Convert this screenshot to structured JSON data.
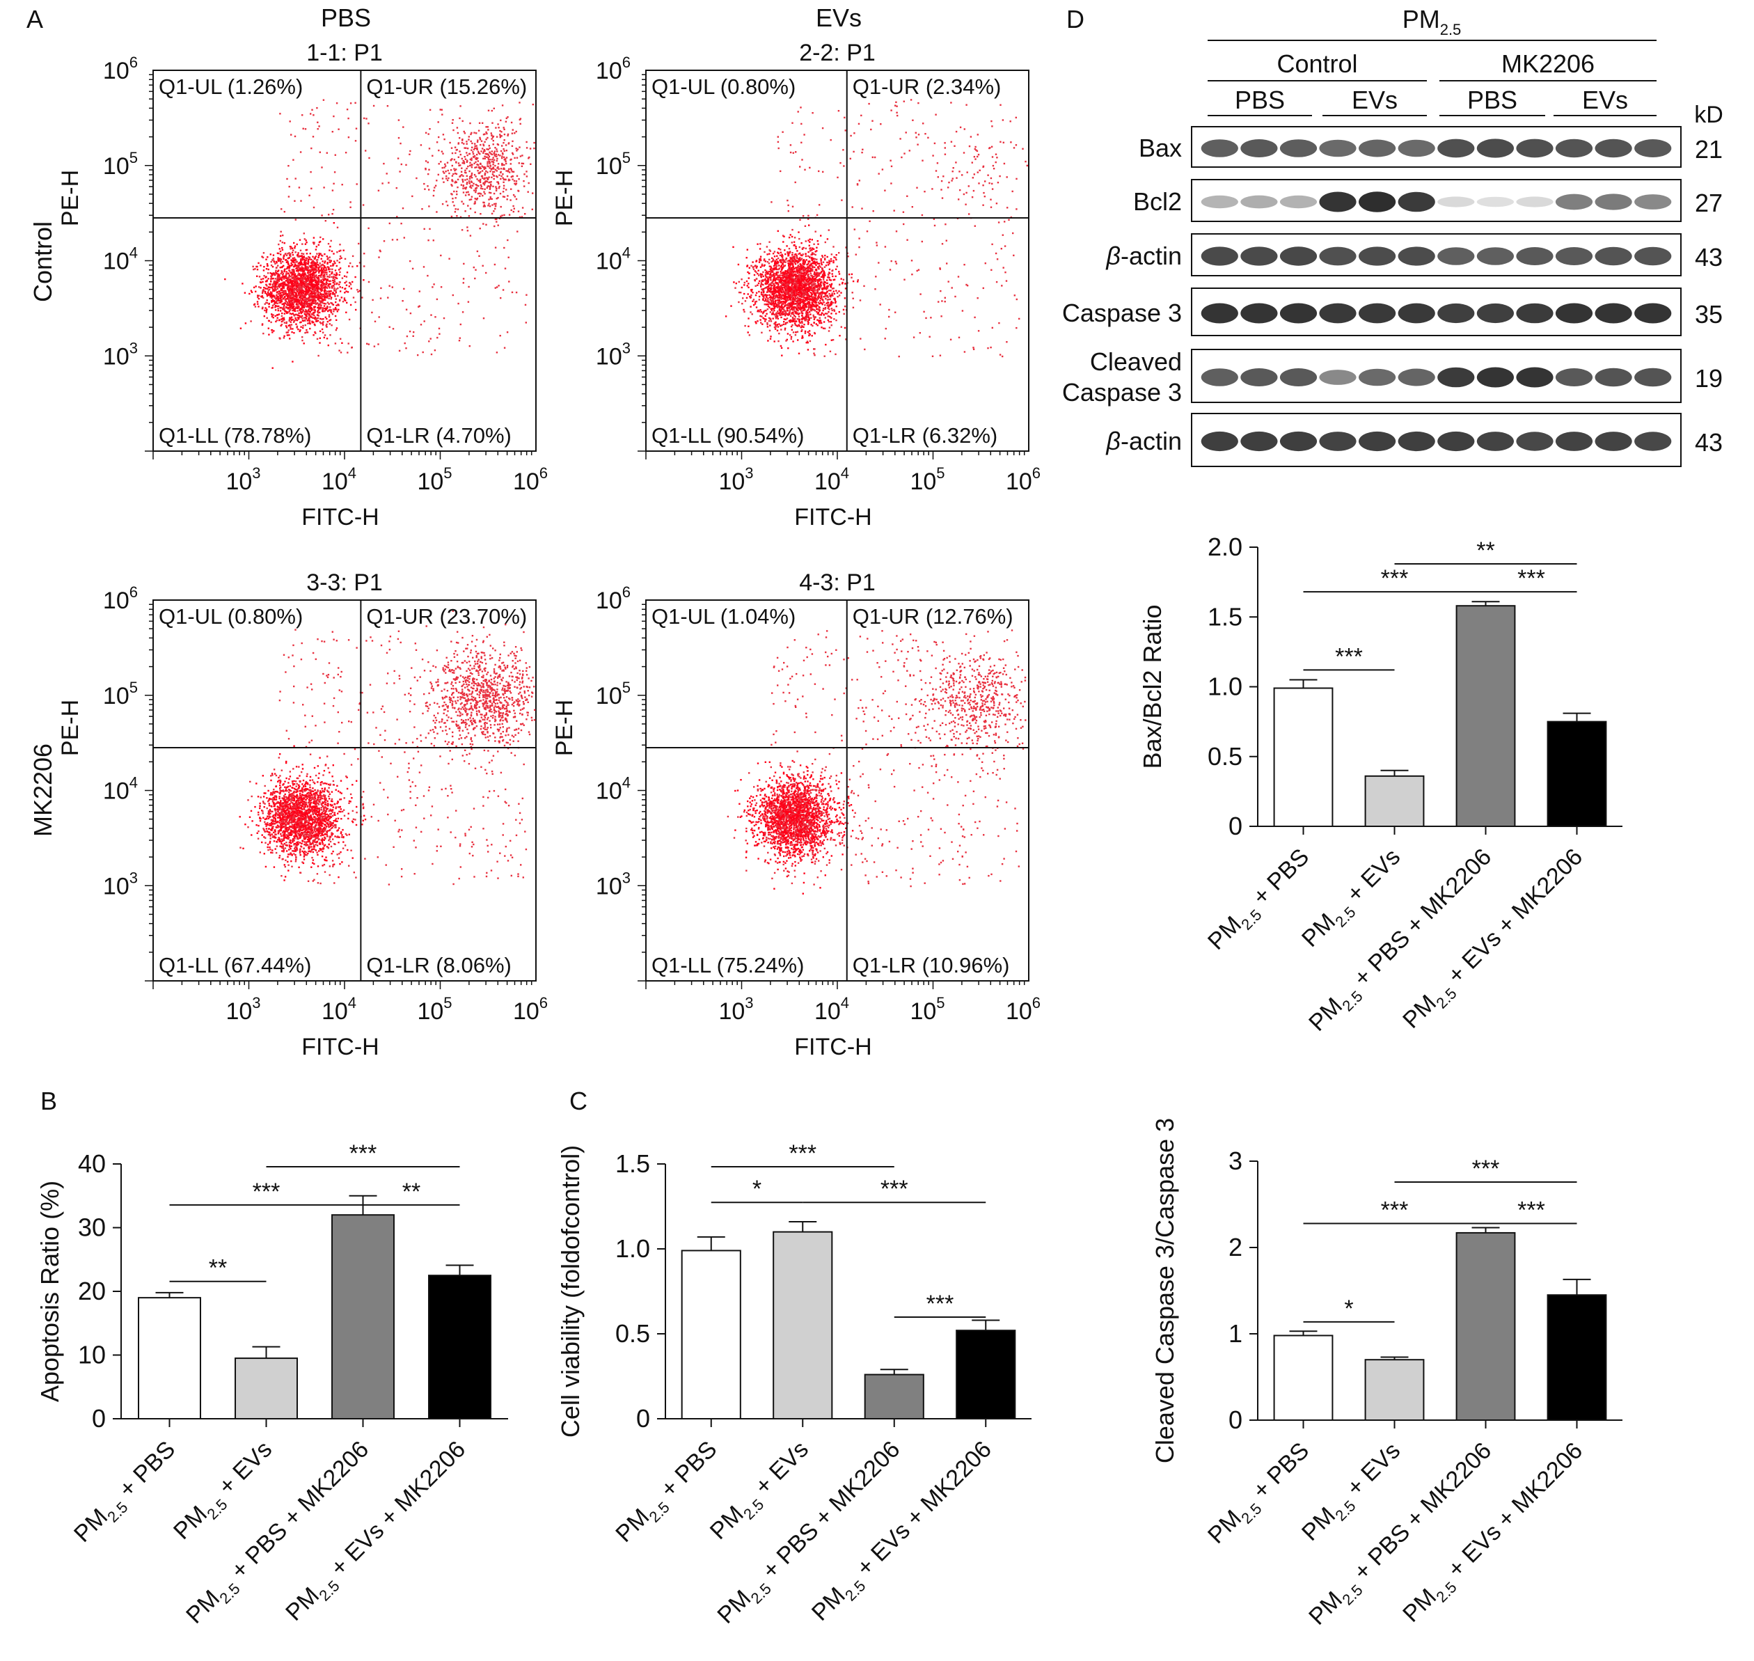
{
  "panel_letters": {
    "a": "A",
    "b": "B",
    "c": "C",
    "d": "D"
  },
  "colors": {
    "dot": "#e8303f",
    "dot_dense": "#ff0018",
    "bar_pbs": "#ffffff",
    "bar_evs": "#d0d0d0",
    "bar_pbs_mk": "#808080",
    "bar_evs_mk": "#000000"
  },
  "flow": {
    "col_headers": [
      "PBS",
      "EVs"
    ],
    "row_labels": [
      "Control",
      "MK2206"
    ],
    "xlabel": "FITC-H",
    "ylabel": "PE-H",
    "axis_log_range": [
      2,
      6
    ],
    "ticks": [
      {
        "base": "10",
        "exp": "3"
      },
      {
        "base": "10",
        "exp": "4"
      },
      {
        "base": "10",
        "exp": "5"
      },
      {
        "base": "10",
        "exp": "6"
      }
    ],
    "plots": [
      {
        "title": "1-1: P1",
        "ul": "Q1-UL (1.26%)",
        "ur": "Q1-UR (15.26%)",
        "ll": "Q1-LL (78.78%)",
        "lr": "Q1-LR (4.70%)",
        "gate_x_log": 4.17,
        "gate_y_log": 4.45,
        "dense_count": 2200,
        "ur_count": 650,
        "scatter_count": 320
      },
      {
        "title": "2-2: P1",
        "ul": "Q1-UL (0.80%)",
        "ur": "Q1-UR (2.34%)",
        "ll": "Q1-LL (90.54%)",
        "lr": "Q1-LR (6.32%)",
        "gate_x_log": 4.1,
        "gate_y_log": 4.45,
        "dense_count": 2600,
        "ur_count": 60,
        "scatter_count": 300
      },
      {
        "title": "3-3: P1",
        "ul": "Q1-UL (0.80%)",
        "ur": "Q1-UR (23.70%)",
        "ll": "Q1-LL (67.44%)",
        "lr": "Q1-LR (8.06%)",
        "gate_x_log": 4.17,
        "gate_y_log": 4.45,
        "dense_count": 2100,
        "ur_count": 950,
        "scatter_count": 380
      },
      {
        "title": "4-3: P1",
        "ul": "Q1-UL (1.04%)",
        "ur": "Q1-UR (12.76%)",
        "ll": "Q1-LL (75.24%)",
        "lr": "Q1-LR (10.96%)",
        "gate_x_log": 4.1,
        "gate_y_log": 4.45,
        "dense_count": 2300,
        "ur_count": 520,
        "scatter_count": 420
      }
    ]
  },
  "western": {
    "pm_label": "PM",
    "pm_sub": "2.5",
    "group_labels": [
      "Control",
      "MK2206"
    ],
    "sub_labels": [
      "PBS",
      "EVs",
      "PBS",
      "EVs"
    ],
    "kd_header": "kD",
    "rows": [
      {
        "name": "Bax",
        "italic_prefix": "",
        "kd": "21",
        "intensity": [
          0.75,
          0.78,
          0.76,
          0.7,
          0.72,
          0.7,
          0.82,
          0.84,
          0.82,
          0.8,
          0.8,
          0.78
        ]
      },
      {
        "name": "Bcl2",
        "italic_prefix": "",
        "kd": "27",
        "intensity": [
          0.35,
          0.38,
          0.36,
          0.95,
          0.98,
          0.92,
          0.18,
          0.15,
          0.18,
          0.6,
          0.62,
          0.55
        ]
      },
      {
        "name": "-actin",
        "italic_prefix": "β",
        "kd": "43",
        "intensity": [
          0.85,
          0.85,
          0.86,
          0.82,
          0.84,
          0.84,
          0.75,
          0.75,
          0.78,
          0.78,
          0.8,
          0.8
        ]
      },
      {
        "name": "Caspase 3",
        "italic_prefix": "",
        "kd": "35",
        "intensity": [
          0.95,
          0.95,
          0.95,
          0.93,
          0.93,
          0.93,
          0.9,
          0.9,
          0.92,
          0.95,
          0.95,
          0.95
        ]
      },
      {
        "name": "Cleaved",
        "name2": "Caspase 3",
        "italic_prefix": "",
        "kd": "19",
        "intensity": [
          0.75,
          0.78,
          0.78,
          0.55,
          0.7,
          0.72,
          0.92,
          0.95,
          0.95,
          0.78,
          0.8,
          0.8
        ]
      },
      {
        "name": "-actin",
        "italic_prefix": "β",
        "kd": "43",
        "intensity": [
          0.9,
          0.9,
          0.9,
          0.88,
          0.9,
          0.9,
          0.9,
          0.88,
          0.86,
          0.88,
          0.88,
          0.86
        ]
      }
    ]
  },
  "chart_data": [
    {
      "type": "bar",
      "panel": "B",
      "categories": [
        "PM2.5 + PBS",
        "PM2.5 + EVs",
        "PM2.5 + PBS + MK2206",
        "PM2.5 + EVs + MK2206"
      ],
      "values": [
        19,
        9.5,
        32,
        22.5
      ],
      "errors": [
        0.8,
        1.8,
        3.0,
        1.6
      ],
      "ylabel": "Apoptosis Ratio (%)",
      "ylim": [
        0,
        40
      ],
      "yticks": [
        "0",
        "10",
        "20",
        "30",
        "40"
      ],
      "significance": [
        {
          "from": 0,
          "to": 1,
          "label": "**",
          "level": 0.55
        },
        {
          "from": 0,
          "to": 2,
          "label": "***",
          "level": 0.85
        },
        {
          "from": 2,
          "to": 3,
          "label": "**",
          "level": 0.85
        },
        {
          "from": 1,
          "to": 3,
          "label": "***",
          "level": 1.0
        }
      ]
    },
    {
      "type": "bar",
      "panel": "C",
      "categories": [
        "PM2.5 + PBS",
        "PM2.5 + EVs",
        "PM2.5 + PBS + MK2206",
        "PM2.5 + EVs + MK2206"
      ],
      "values": [
        0.99,
        1.1,
        0.26,
        0.52
      ],
      "errors": [
        0.08,
        0.06,
        0.03,
        0.06
      ],
      "ylabel": "Cell viability (foldofcontrol)",
      "ylim": [
        0,
        1.5
      ],
      "yticks": [
        "0",
        "0.5",
        "1.0",
        "1.5"
      ],
      "significance": [
        {
          "from": 0,
          "to": 1,
          "label": "*",
          "level": 0.86
        },
        {
          "from": 0,
          "to": 2,
          "label": "***",
          "level": 1.0
        },
        {
          "from": 1,
          "to": 3,
          "label": "***",
          "level": 0.86
        },
        {
          "from": 2,
          "to": 3,
          "label": "***",
          "level": 0.41
        }
      ]
    },
    {
      "type": "bar",
      "panel": "D1",
      "categories": [
        "PM2.5 + PBS",
        "PM2.5 + EVs",
        "PM2.5 + PBS + MK2206",
        "PM2.5 + EVs + MK2206"
      ],
      "values": [
        0.99,
        0.36,
        1.58,
        0.75
      ],
      "errors": [
        0.06,
        0.04,
        0.03,
        0.06
      ],
      "ylabel": "Bax/Bcl2 Ratio",
      "ylim": [
        0,
        2.0
      ],
      "yticks": [
        "0",
        "0.5",
        "1.0",
        "1.5",
        "2.0"
      ],
      "significance": [
        {
          "from": 0,
          "to": 1,
          "label": "***",
          "level": 0.57
        },
        {
          "from": 0,
          "to": 2,
          "label": "***",
          "level": 0.85
        },
        {
          "from": 2,
          "to": 3,
          "label": "***",
          "level": 0.85
        },
        {
          "from": 1,
          "to": 3,
          "label": "**",
          "level": 0.95
        }
      ]
    },
    {
      "type": "bar",
      "panel": "D2",
      "categories": [
        "PM2.5 + PBS",
        "PM2.5 + EVs",
        "PM2.5 + PBS + MK2206",
        "PM2.5 + EVs + MK2206"
      ],
      "values": [
        0.98,
        0.7,
        2.17,
        1.45
      ],
      "errors": [
        0.05,
        0.03,
        0.06,
        0.18
      ],
      "ylabel": "Cleaved Caspase 3/Caspase 3",
      "ylim": [
        0,
        3
      ],
      "yticks": [
        "0",
        "1",
        "2",
        "3"
      ],
      "significance": [
        {
          "from": 0,
          "to": 1,
          "label": "*",
          "level": 0.39
        },
        {
          "from": 0,
          "to": 2,
          "label": "***",
          "level": 0.77
        },
        {
          "from": 2,
          "to": 3,
          "label": "***",
          "level": 0.77
        },
        {
          "from": 1,
          "to": 3,
          "label": "***",
          "level": 0.93
        }
      ]
    }
  ],
  "category_parts": [
    {
      "pre": "PM",
      "sub": "2.5",
      "post": " + PBS"
    },
    {
      "pre": "PM",
      "sub": "2.5",
      "post": " + EVs"
    },
    {
      "pre": "PM",
      "sub": "2.5",
      "post": " + PBS + MK2206"
    },
    {
      "pre": "PM",
      "sub": "2.5",
      "post": " + EVs + MK2206"
    }
  ]
}
